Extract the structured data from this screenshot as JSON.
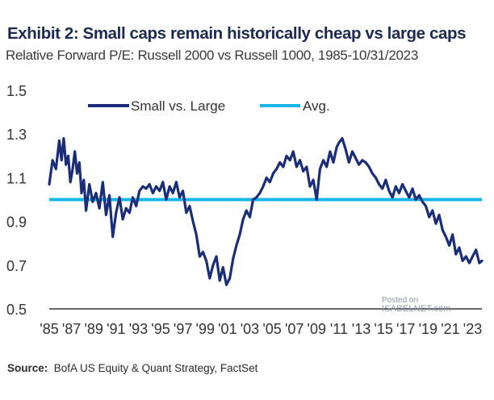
{
  "header": {
    "title": "Exhibit 2: Small caps remain historically cheap vs large caps",
    "subtitle": "Relative Forward P/E: Russell 2000 vs Russell 1000, 1985-10/31/2023"
  },
  "footer": {
    "source_label": "Source:",
    "source_text": "BofA US Equity & Quant Strategy, FactSet"
  },
  "watermark": {
    "line1": "Posted on",
    "line2": "ISABELNET.com"
  },
  "colors": {
    "series_line": "#1a2e78",
    "average_line": "#16b6e8",
    "axis": "#333333"
  },
  "chart_data": {
    "type": "line",
    "ylim": [
      0.5,
      1.5
    ],
    "yticks": [
      0.5,
      0.7,
      0.9,
      1.1,
      1.3,
      1.5
    ],
    "ytick_labels": [
      "0.5",
      "0.7",
      "0.9",
      "1.1",
      "1.3",
      "1.5"
    ],
    "xlim": [
      1985,
      2023.83
    ],
    "xticks": [
      1985,
      1987,
      1989,
      1991,
      1993,
      1995,
      1997,
      1999,
      2001,
      2003,
      2005,
      2007,
      2009,
      2011,
      2013,
      2015,
      2017,
      2019,
      2021,
      2023
    ],
    "xtick_labels": [
      "'85",
      "'87",
      "'89",
      "'91",
      "'93",
      "'95",
      "'97",
      "'99",
      "'01",
      "'03",
      "'05",
      "'07",
      "'09",
      "'11",
      "'13",
      "'15",
      "'17",
      "'19",
      "'21",
      "'23"
    ],
    "legend": {
      "position": "top-left"
    },
    "grid": false,
    "series": [
      {
        "name": "Small vs. Large",
        "x": [
          1985.0,
          1985.3,
          1985.6,
          1985.9,
          1986.1,
          1986.3,
          1986.5,
          1986.7,
          1986.9,
          1987.1,
          1987.3,
          1987.5,
          1987.7,
          1987.9,
          1988.1,
          1988.3,
          1988.6,
          1988.9,
          1989.2,
          1989.5,
          1989.8,
          1990.1,
          1990.4,
          1990.7,
          1991.0,
          1991.3,
          1991.6,
          1991.9,
          1992.2,
          1992.5,
          1992.8,
          1993.1,
          1993.4,
          1993.7,
          1994.0,
          1994.3,
          1994.6,
          1994.9,
          1995.2,
          1995.5,
          1995.8,
          1996.1,
          1996.4,
          1996.7,
          1997.0,
          1997.3,
          1997.6,
          1997.9,
          1998.2,
          1998.5,
          1998.8,
          1999.1,
          1999.4,
          1999.7,
          2000.0,
          2000.3,
          2000.6,
          2000.9,
          2001.2,
          2001.5,
          2001.8,
          2002.1,
          2002.4,
          2002.7,
          2003.0,
          2003.3,
          2003.6,
          2003.9,
          2004.2,
          2004.5,
          2004.8,
          2005.1,
          2005.4,
          2005.7,
          2006.0,
          2006.3,
          2006.6,
          2006.9,
          2007.2,
          2007.5,
          2007.8,
          2008.1,
          2008.4,
          2008.7,
          2009.0,
          2009.3,
          2009.6,
          2009.9,
          2010.2,
          2010.5,
          2010.8,
          2011.0,
          2011.3,
          2011.6,
          2011.9,
          2012.2,
          2012.5,
          2012.8,
          2013.1,
          2013.4,
          2013.7,
          2014.0,
          2014.3,
          2014.6,
          2014.9,
          2015.2,
          2015.5,
          2015.8,
          2016.1,
          2016.4,
          2016.7,
          2017.0,
          2017.3,
          2017.6,
          2017.9,
          2018.2,
          2018.5,
          2018.8,
          2019.1,
          2019.4,
          2019.7,
          2020.0,
          2020.3,
          2020.6,
          2020.9,
          2021.2,
          2021.5,
          2021.8,
          2022.1,
          2022.4,
          2022.7,
          2023.0,
          2023.3,
          2023.6,
          2023.83
        ],
        "y": [
          1.07,
          1.18,
          1.14,
          1.27,
          1.18,
          1.28,
          1.16,
          1.2,
          1.08,
          1.14,
          1.22,
          1.12,
          1.17,
          1.03,
          1.09,
          0.95,
          1.07,
          0.99,
          1.03,
          0.96,
          1.08,
          0.93,
          1.02,
          0.83,
          0.94,
          1.01,
          0.91,
          0.96,
          0.94,
          1.01,
          0.97,
          1.04,
          1.06,
          1.05,
          1.07,
          1.03,
          1.06,
          1.04,
          1.08,
          1.0,
          1.06,
          1.03,
          1.08,
          1.01,
          1.04,
          0.94,
          0.97,
          0.9,
          0.84,
          0.74,
          0.76,
          0.72,
          0.64,
          0.7,
          0.74,
          0.63,
          0.69,
          0.61,
          0.64,
          0.73,
          0.79,
          0.84,
          0.91,
          0.95,
          0.92,
          1.0,
          1.01,
          1.03,
          1.06,
          1.1,
          1.08,
          1.12,
          1.14,
          1.17,
          1.15,
          1.2,
          1.18,
          1.22,
          1.15,
          1.18,
          1.13,
          1.15,
          1.06,
          1.09,
          1.0,
          1.14,
          1.18,
          1.15,
          1.22,
          1.17,
          1.24,
          1.26,
          1.28,
          1.23,
          1.17,
          1.22,
          1.19,
          1.16,
          1.18,
          1.17,
          1.15,
          1.12,
          1.1,
          1.07,
          1.05,
          1.09,
          1.04,
          1.01,
          1.06,
          1.03,
          1.07,
          1.04,
          1.01,
          1.05,
          1.0,
          1.02,
          0.99,
          0.97,
          0.92,
          0.95,
          0.89,
          0.93,
          0.86,
          0.83,
          0.79,
          0.84,
          0.75,
          0.78,
          0.72,
          0.74,
          0.71,
          0.74,
          0.77,
          0.71,
          0.72
        ]
      }
    ],
    "reference_lines": [
      {
        "name": "Avg.",
        "y": 1.0
      }
    ]
  }
}
